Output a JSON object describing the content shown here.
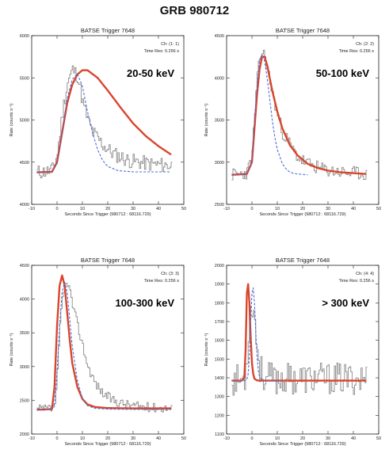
{
  "title": "GRB 980712",
  "chart_data": [
    {
      "type": "line",
      "title": "BATSE Trigger 7648",
      "channel_label": "Ch: (1: 1)",
      "time_res_label": "Time Res: 0.256 s",
      "band_label": "20-50 keV",
      "xlabel": "Seconds Since Trigger (980712 : 68116.729)",
      "ylabel": "Rate (counts s⁻¹)",
      "xlim": [
        -10,
        50
      ],
      "ylim": [
        4000,
        6000
      ],
      "xticks": [
        -10,
        0,
        10,
        20,
        30,
        40,
        50
      ],
      "yticks": [
        4000,
        4500,
        5000,
        5500,
        6000
      ],
      "series": [
        {
          "style": "histogram",
          "color": "#8a8a8a",
          "noise": 90,
          "seed": 11,
          "x": [
            -8,
            -4,
            -2,
            0,
            2,
            4,
            6,
            8,
            10,
            12,
            14,
            16,
            18,
            20,
            22,
            25,
            28,
            32,
            36,
            40,
            45
          ],
          "y": [
            4380,
            4390,
            4410,
            4600,
            5100,
            5450,
            5600,
            5520,
            5200,
            5000,
            4850,
            4780,
            4700,
            4650,
            4600,
            4560,
            4520,
            4500,
            4480,
            4470,
            4460
          ]
        },
        {
          "style": "solid",
          "color": "#d9452b",
          "x": [
            -8,
            -2,
            0,
            2,
            4,
            6,
            8,
            10,
            12,
            16,
            20,
            25,
            30,
            35,
            40,
            45
          ],
          "y": [
            4380,
            4385,
            4500,
            4850,
            5200,
            5420,
            5540,
            5590,
            5590,
            5500,
            5350,
            5150,
            4960,
            4810,
            4690,
            4590
          ]
        },
        {
          "style": "dashed",
          "color": "#4a6fd9",
          "x": [
            -8,
            -2,
            0,
            2,
            4,
            6,
            8,
            10,
            12,
            14,
            16,
            18,
            20,
            24,
            30,
            45
          ],
          "y": [
            4380,
            4385,
            4480,
            4850,
            5250,
            5480,
            5550,
            5400,
            5100,
            4850,
            4650,
            4520,
            4450,
            4400,
            4385,
            4385
          ]
        }
      ]
    },
    {
      "type": "line",
      "title": "BATSE Trigger 7648",
      "channel_label": "Ch: (2: 2)",
      "time_res_label": "Time Res: 0.256 s",
      "band_label": "50-100 keV",
      "xlabel": "Seconds Since Trigger (980712 : 68116.729)",
      "ylabel": "Rate (counts s⁻¹)",
      "xlim": [
        -10,
        50
      ],
      "ylim": [
        2500,
        4500
      ],
      "xticks": [
        -10,
        0,
        10,
        20,
        30,
        40,
        50
      ],
      "yticks": [
        2500,
        3000,
        3500,
        4000,
        4500
      ],
      "series": [
        {
          "style": "histogram",
          "color": "#8a8a8a",
          "noise": 80,
          "seed": 23,
          "x": [
            -8,
            -4,
            -2,
            0,
            1,
            2,
            3,
            4,
            5,
            6,
            8,
            10,
            12,
            15,
            18,
            22,
            26,
            30,
            35,
            40,
            45
          ],
          "y": [
            2850,
            2860,
            2880,
            3100,
            3600,
            4000,
            4250,
            4300,
            4250,
            4100,
            3800,
            3550,
            3350,
            3200,
            3050,
            2980,
            2930,
            2900,
            2880,
            2870,
            2860
          ]
        },
        {
          "style": "solid",
          "color": "#d9452b",
          "x": [
            -8,
            -2,
            0,
            1,
            2,
            3,
            4,
            5,
            6,
            8,
            10,
            12,
            15,
            18,
            22,
            26,
            30,
            35,
            40,
            45
          ],
          "y": [
            2850,
            2860,
            3000,
            3400,
            3800,
            4100,
            4250,
            4250,
            4150,
            3850,
            3600,
            3400,
            3200,
            3080,
            2980,
            2930,
            2900,
            2880,
            2870,
            2860
          ]
        },
        {
          "style": "dashed",
          "color": "#4a6fd9",
          "x": [
            -8,
            -2,
            0,
            1,
            2,
            3,
            4,
            5,
            6,
            7,
            8,
            9,
            10,
            12,
            14,
            16,
            18,
            20,
            22
          ],
          "y": [
            2850,
            2860,
            3000,
            3500,
            3900,
            4200,
            4280,
            4200,
            4000,
            3750,
            3500,
            3300,
            3150,
            2980,
            2900,
            2870,
            2860,
            2855,
            2850
          ]
        }
      ]
    },
    {
      "type": "line",
      "title": "BATSE Trigger 7648",
      "channel_label": "Ch: (3: 3)",
      "time_res_label": "Time Res: 0.256 s",
      "band_label": "100-300 keV",
      "xlabel": "Seconds Since Trigger (980712 : 68116.729)",
      "ylabel": "Rate (counts s⁻¹)",
      "xlim": [
        -10,
        50
      ],
      "ylim": [
        2000,
        4500
      ],
      "xticks": [
        -10,
        0,
        10,
        20,
        30,
        40,
        50
      ],
      "yticks": [
        2000,
        2500,
        3000,
        3500,
        4000,
        4500
      ],
      "series": [
        {
          "style": "histogram",
          "color": "#8a8a8a",
          "noise": 70,
          "seed": 37,
          "x": [
            -8,
            -4,
            -2,
            -1,
            0,
            1,
            2,
            3,
            4,
            5,
            6,
            8,
            10,
            12,
            15,
            18,
            22,
            26,
            30,
            35,
            40,
            45
          ],
          "y": [
            2360,
            2370,
            2380,
            2450,
            2900,
            3600,
            4000,
            4200,
            4250,
            4100,
            3900,
            3600,
            3300,
            3000,
            2750,
            2600,
            2500,
            2450,
            2420,
            2400,
            2390,
            2380
          ]
        },
        {
          "style": "solid",
          "color": "#d9452b",
          "x": [
            -8,
            -2,
            -1,
            0,
            1,
            2,
            3,
            4,
            5,
            6,
            8,
            10,
            12,
            15,
            20,
            30,
            45
          ],
          "y": [
            2360,
            2370,
            2700,
            3600,
            4200,
            4350,
            4200,
            3800,
            3400,
            3050,
            2700,
            2520,
            2440,
            2400,
            2385,
            2380,
            2380
          ]
        },
        {
          "style": "dashed",
          "color": "#4a6fd9",
          "x": [
            -8,
            -2,
            -1,
            0,
            1,
            2,
            3,
            4,
            5,
            6,
            8,
            10,
            12,
            15,
            20,
            30,
            45
          ],
          "y": [
            2360,
            2365,
            2450,
            2900,
            3600,
            4100,
            4250,
            4100,
            3700,
            3300,
            2800,
            2520,
            2420,
            2380,
            2370,
            2365,
            2365
          ]
        }
      ]
    },
    {
      "type": "line",
      "title": "BATSE Trigger 7648",
      "channel_label": "Ch: (4: 4)",
      "time_res_label": "Time Res: 0.256 s",
      "band_label": "> 300 keV",
      "xlabel": "Seconds Since Trigger (980712 : 68116.729)",
      "ylabel": "Rate (counts s⁻¹)",
      "xlim": [
        -10,
        50
      ],
      "ylim": [
        1100,
        2000
      ],
      "xticks": [
        -10,
        0,
        10,
        20,
        30,
        40,
        50
      ],
      "yticks": [
        1100,
        1200,
        1300,
        1400,
        1500,
        1600,
        1700,
        1800,
        1900,
        2000
      ],
      "series": [
        {
          "style": "histogram",
          "color": "#8a8a8a",
          "noise": 85,
          "seed": 53,
          "x": [
            -8,
            -4,
            -3,
            -2,
            -1,
            0,
            1,
            2,
            3,
            5,
            8,
            12,
            16,
            20,
            25,
            30,
            35,
            40,
            45
          ],
          "y": [
            1390,
            1390,
            1400,
            1550,
            1750,
            1800,
            1700,
            1550,
            1450,
            1400,
            1395,
            1395,
            1395,
            1395,
            1395,
            1395,
            1395,
            1395,
            1395
          ]
        },
        {
          "style": "solid",
          "color": "#d9452b",
          "x": [
            -8,
            -4,
            -3,
            -2.5,
            -2,
            -1.5,
            -1,
            -0.5,
            0,
            0.5,
            1,
            2,
            3,
            5,
            10,
            20,
            30,
            45
          ],
          "y": [
            1385,
            1385,
            1400,
            1550,
            1850,
            1900,
            1800,
            1620,
            1480,
            1420,
            1395,
            1386,
            1385,
            1385,
            1385,
            1385,
            1385,
            1385
          ]
        },
        {
          "style": "dashed",
          "color": "#4a6fd9",
          "x": [
            -8,
            -3,
            -2,
            -1.5,
            -1,
            -0.5,
            0,
            0.5,
            1,
            1.5,
            2,
            2.5,
            3,
            4,
            5,
            8,
            12
          ],
          "y": [
            1385,
            1385,
            1390,
            1420,
            1520,
            1700,
            1850,
            1880,
            1800,
            1650,
            1520,
            1440,
            1405,
            1390,
            1386,
            1385,
            1385
          ]
        }
      ]
    }
  ]
}
